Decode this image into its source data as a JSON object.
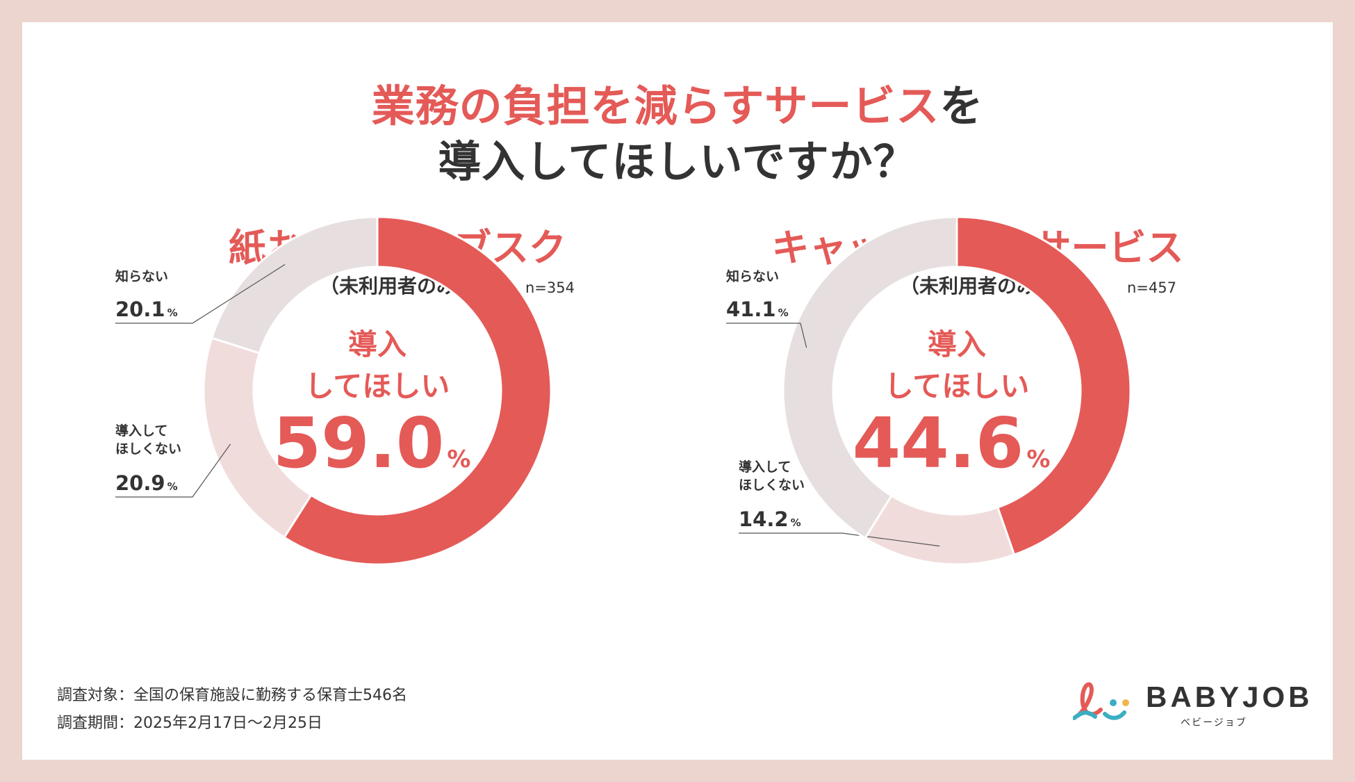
{
  "title": {
    "line1_highlight": "業務の負担を減らすサービス",
    "line1_rest": "を",
    "line2": "導入してほしいですか？"
  },
  "colors": {
    "want": "#e45a57",
    "dont_want": "#f1dcdc",
    "dont_know": "#e7dfdf",
    "background": "#ecd5ce"
  },
  "chart_data": [
    {
      "type": "pie",
      "variant": "donut",
      "title": "紙おむつのサブスク",
      "subtitle": "（未利用者のみ）",
      "n": "n=354",
      "center_line1": "導入",
      "center_line2": "してほしい",
      "center_value": "59.0",
      "slices": [
        {
          "label": "導入してほしい",
          "value": 59.0,
          "display": "59.0"
        },
        {
          "label": "導入してほしくない",
          "value": 20.9,
          "display": "20.9",
          "label_lines": [
            "導入して",
            "ほしくない"
          ]
        },
        {
          "label": "知らない",
          "value": 20.1,
          "display": "20.1",
          "label_lines": [
            "知らない"
          ]
        }
      ],
      "unit": "%"
    },
    {
      "type": "pie",
      "variant": "donut",
      "title": "キャッシュレスサービス",
      "subtitle": "（未利用者のみ）",
      "n": "n=457",
      "center_line1": "導入",
      "center_line2": "してほしい",
      "center_value": "44.6",
      "slices": [
        {
          "label": "導入してほしい",
          "value": 44.6,
          "display": "44.6"
        },
        {
          "label": "導入してほしくない",
          "value": 14.2,
          "display": "14.2",
          "label_lines": [
            "導入して",
            "ほしくない"
          ]
        },
        {
          "label": "知らない",
          "value": 41.1,
          "display": "41.1",
          "label_lines": [
            "知らない"
          ]
        }
      ],
      "unit": "%"
    }
  ],
  "footer": {
    "subjects": "調査対象：全国の保育施設に勤務する保育士546名",
    "period": "調査期間：2025年2月17日〜2月25日"
  },
  "logo": {
    "name": "BABYJOB",
    "kana": "ベビージョブ"
  }
}
